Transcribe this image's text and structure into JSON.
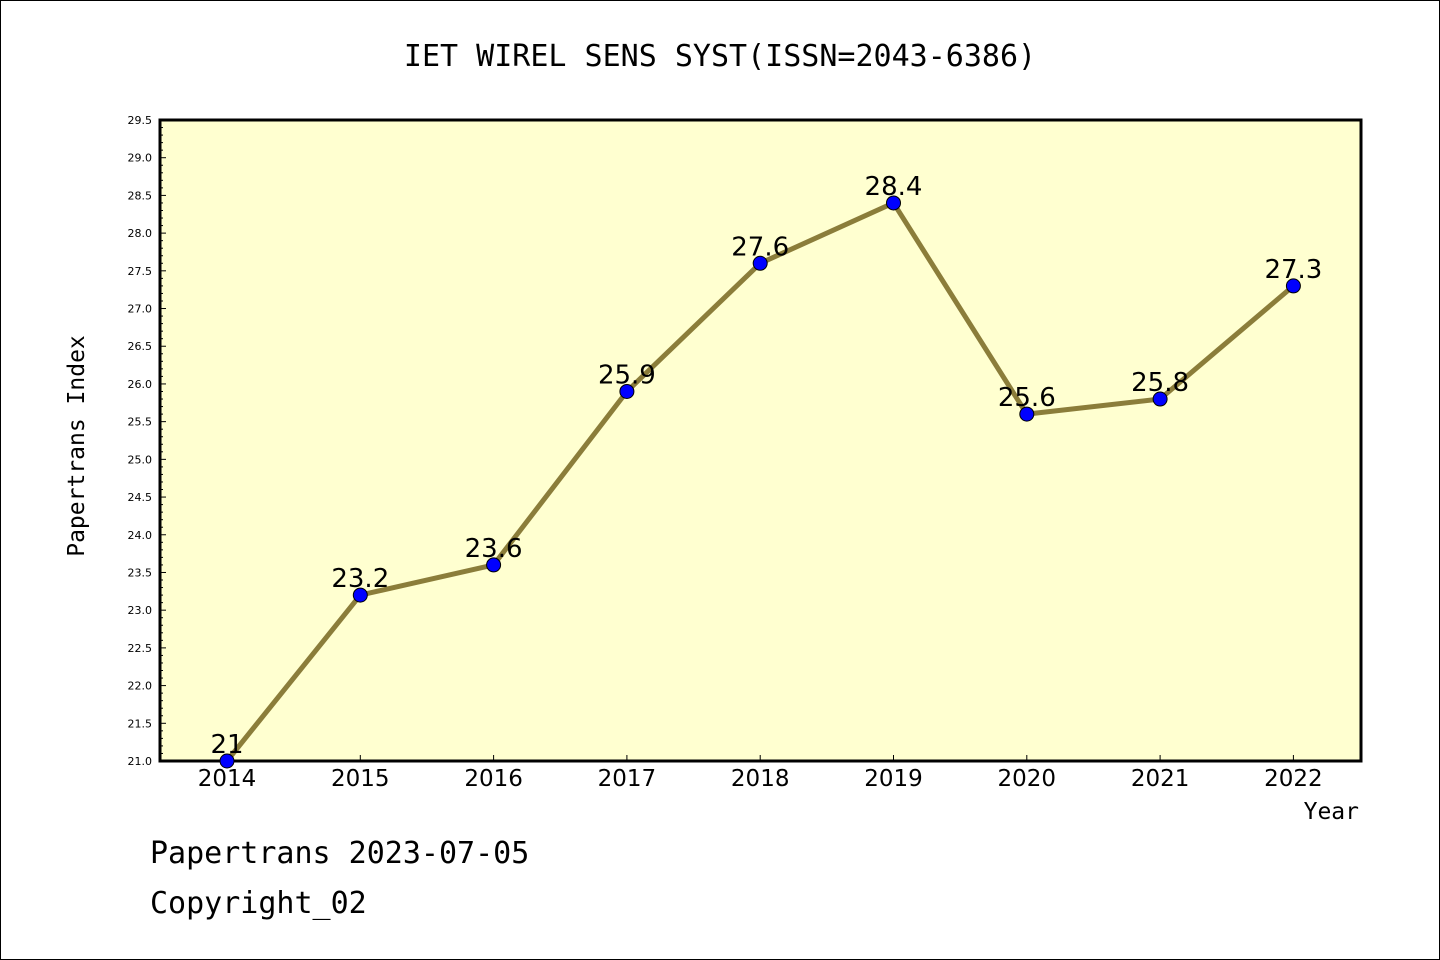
{
  "footer": {
    "line1": "Papertrans 2023-07-05",
    "line2": "Copyright_02"
  },
  "chart_data": {
    "type": "line",
    "title": "IET WIREL SENS SYST(ISSN=2043-6386)",
    "xlabel": "Year",
    "ylabel": "Papertrans Index",
    "categories": [
      "2014",
      "2015",
      "2016",
      "2017",
      "2018",
      "2019",
      "2020",
      "2021",
      "2022"
    ],
    "values": [
      21.0,
      23.2,
      23.6,
      25.9,
      27.6,
      28.4,
      25.6,
      25.8,
      27.3
    ],
    "data_labels": [
      "21",
      "23.2",
      "23.6",
      "25.9",
      "27.6",
      "28.4",
      "25.6",
      "25.8",
      "27.3"
    ],
    "ylim": [
      21.0,
      29.5
    ],
    "yticks": [
      "21.0",
      "21.5",
      "22.0",
      "22.5",
      "23.0",
      "23.5",
      "24.0",
      "24.5",
      "25.0",
      "25.5",
      "26.0",
      "26.5",
      "27.0",
      "27.5",
      "28.0",
      "28.5",
      "29.0",
      "29.5"
    ],
    "grid": false,
    "colors": {
      "plot_background": "#ffffd0",
      "line": "#8b7d3a",
      "marker": "#0000ff",
      "marker_edge": "#000000"
    }
  }
}
